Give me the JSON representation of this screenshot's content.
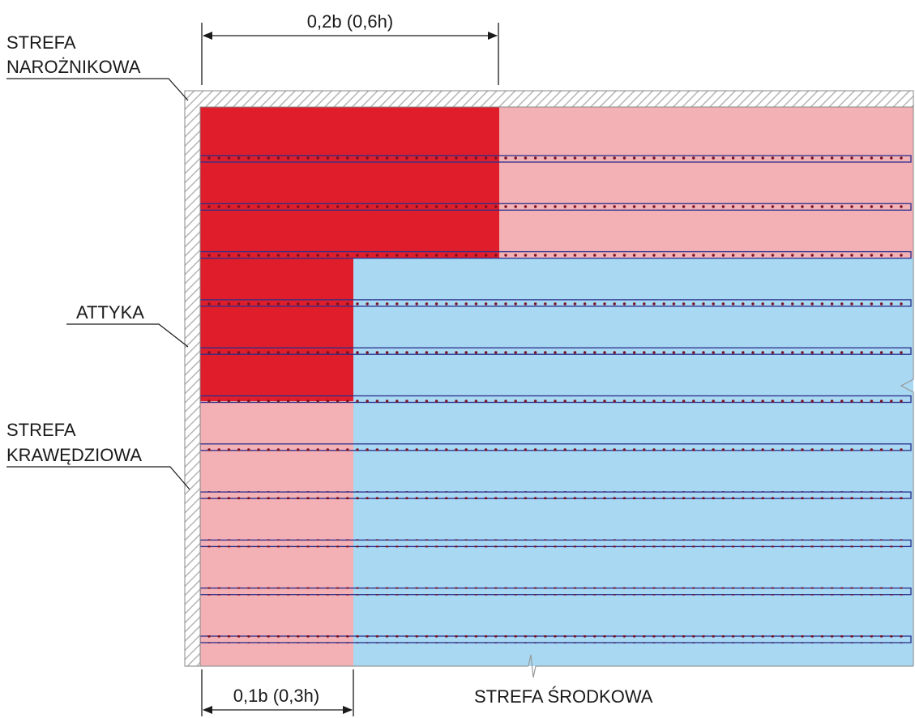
{
  "labels": {
    "corner_zone": [
      "STREFA",
      "NAROŻNIKOWA"
    ],
    "parapet": "ATTYKA",
    "edge_zone": [
      "STREFA",
      "KRAWĘDZIOWA"
    ],
    "middle_zone": "STREFA ŚRODKOWA",
    "dim_top": "0,2b (0,6h)",
    "dim_bottom": "0,1b (0,3h)"
  },
  "colors": {
    "corner": "#e01e2b",
    "edge": "#f3b0b5",
    "middle": "#a8d8f2",
    "fastener_strip": "#2a2f8c",
    "fastener_dot": "#7a1020",
    "parapet_hatch": "#b5b5b5",
    "dimension_line": "#1a1a1a"
  },
  "fastener_rows": 11,
  "icons": {
    "dimension_arrow": "arrow-icon",
    "break_mark": "break-line-icon"
  }
}
